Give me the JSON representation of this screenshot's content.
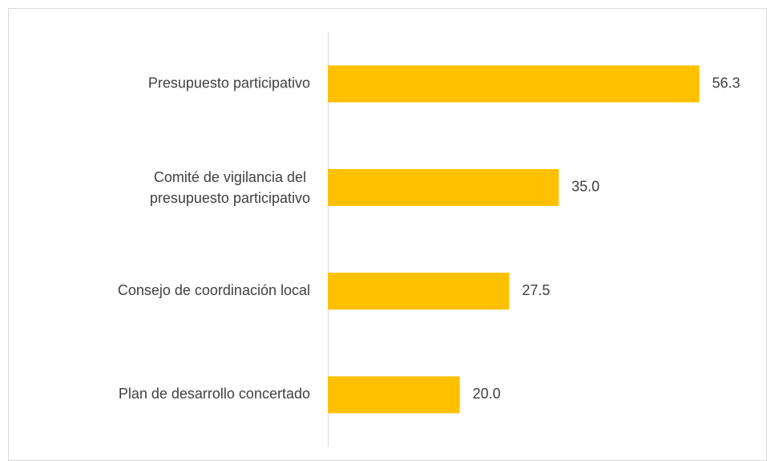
{
  "chart_data": {
    "type": "hbar",
    "categories": [
      "Presupuesto participativo",
      "Comité de vigilancia del presupuesto participativo",
      "Consejo de coordinación local",
      "Plan de desarrollo concertado"
    ],
    "values": [
      56.3,
      35.0,
      27.5,
      20.0
    ],
    "value_labels": [
      "56.3",
      "35.0",
      "27.5",
      "20.0"
    ],
    "color": "#ffc000",
    "xlim": [
      0,
      60
    ]
  }
}
